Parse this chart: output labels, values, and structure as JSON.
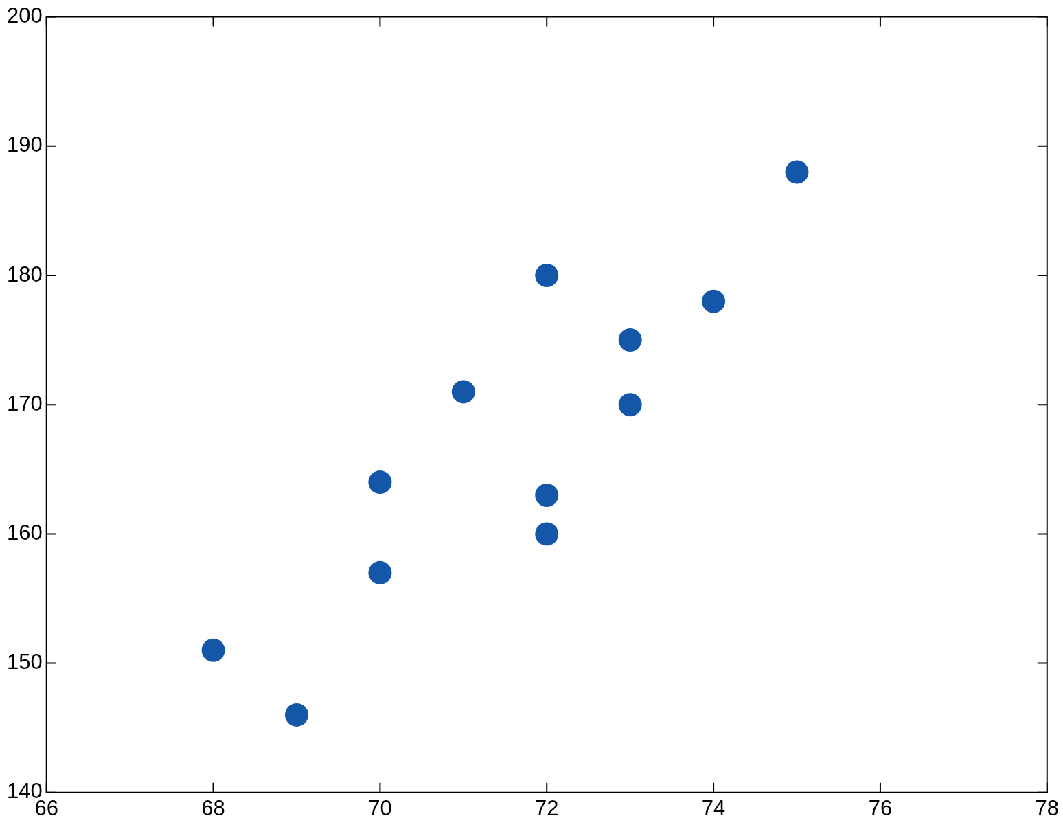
{
  "chart_data": {
    "type": "scatter",
    "x": [
      68,
      69,
      70,
      70,
      71,
      72,
      72,
      72,
      73,
      73,
      74,
      75
    ],
    "series": [
      {
        "color": "#1457a8",
        "values": [
          151,
          146,
          164,
          157,
          171,
          180,
          163,
          160,
          175,
          170,
          178,
          188
        ]
      }
    ],
    "xlim": [
      66,
      78
    ],
    "xticks": [
      66,
      68,
      70,
      72,
      74,
      76,
      78
    ],
    "ylim": [
      140,
      200
    ],
    "yticks": [
      140,
      150,
      160,
      170,
      180,
      190,
      200
    ],
    "grid": false,
    "legend": false,
    "marker": "circle"
  }
}
